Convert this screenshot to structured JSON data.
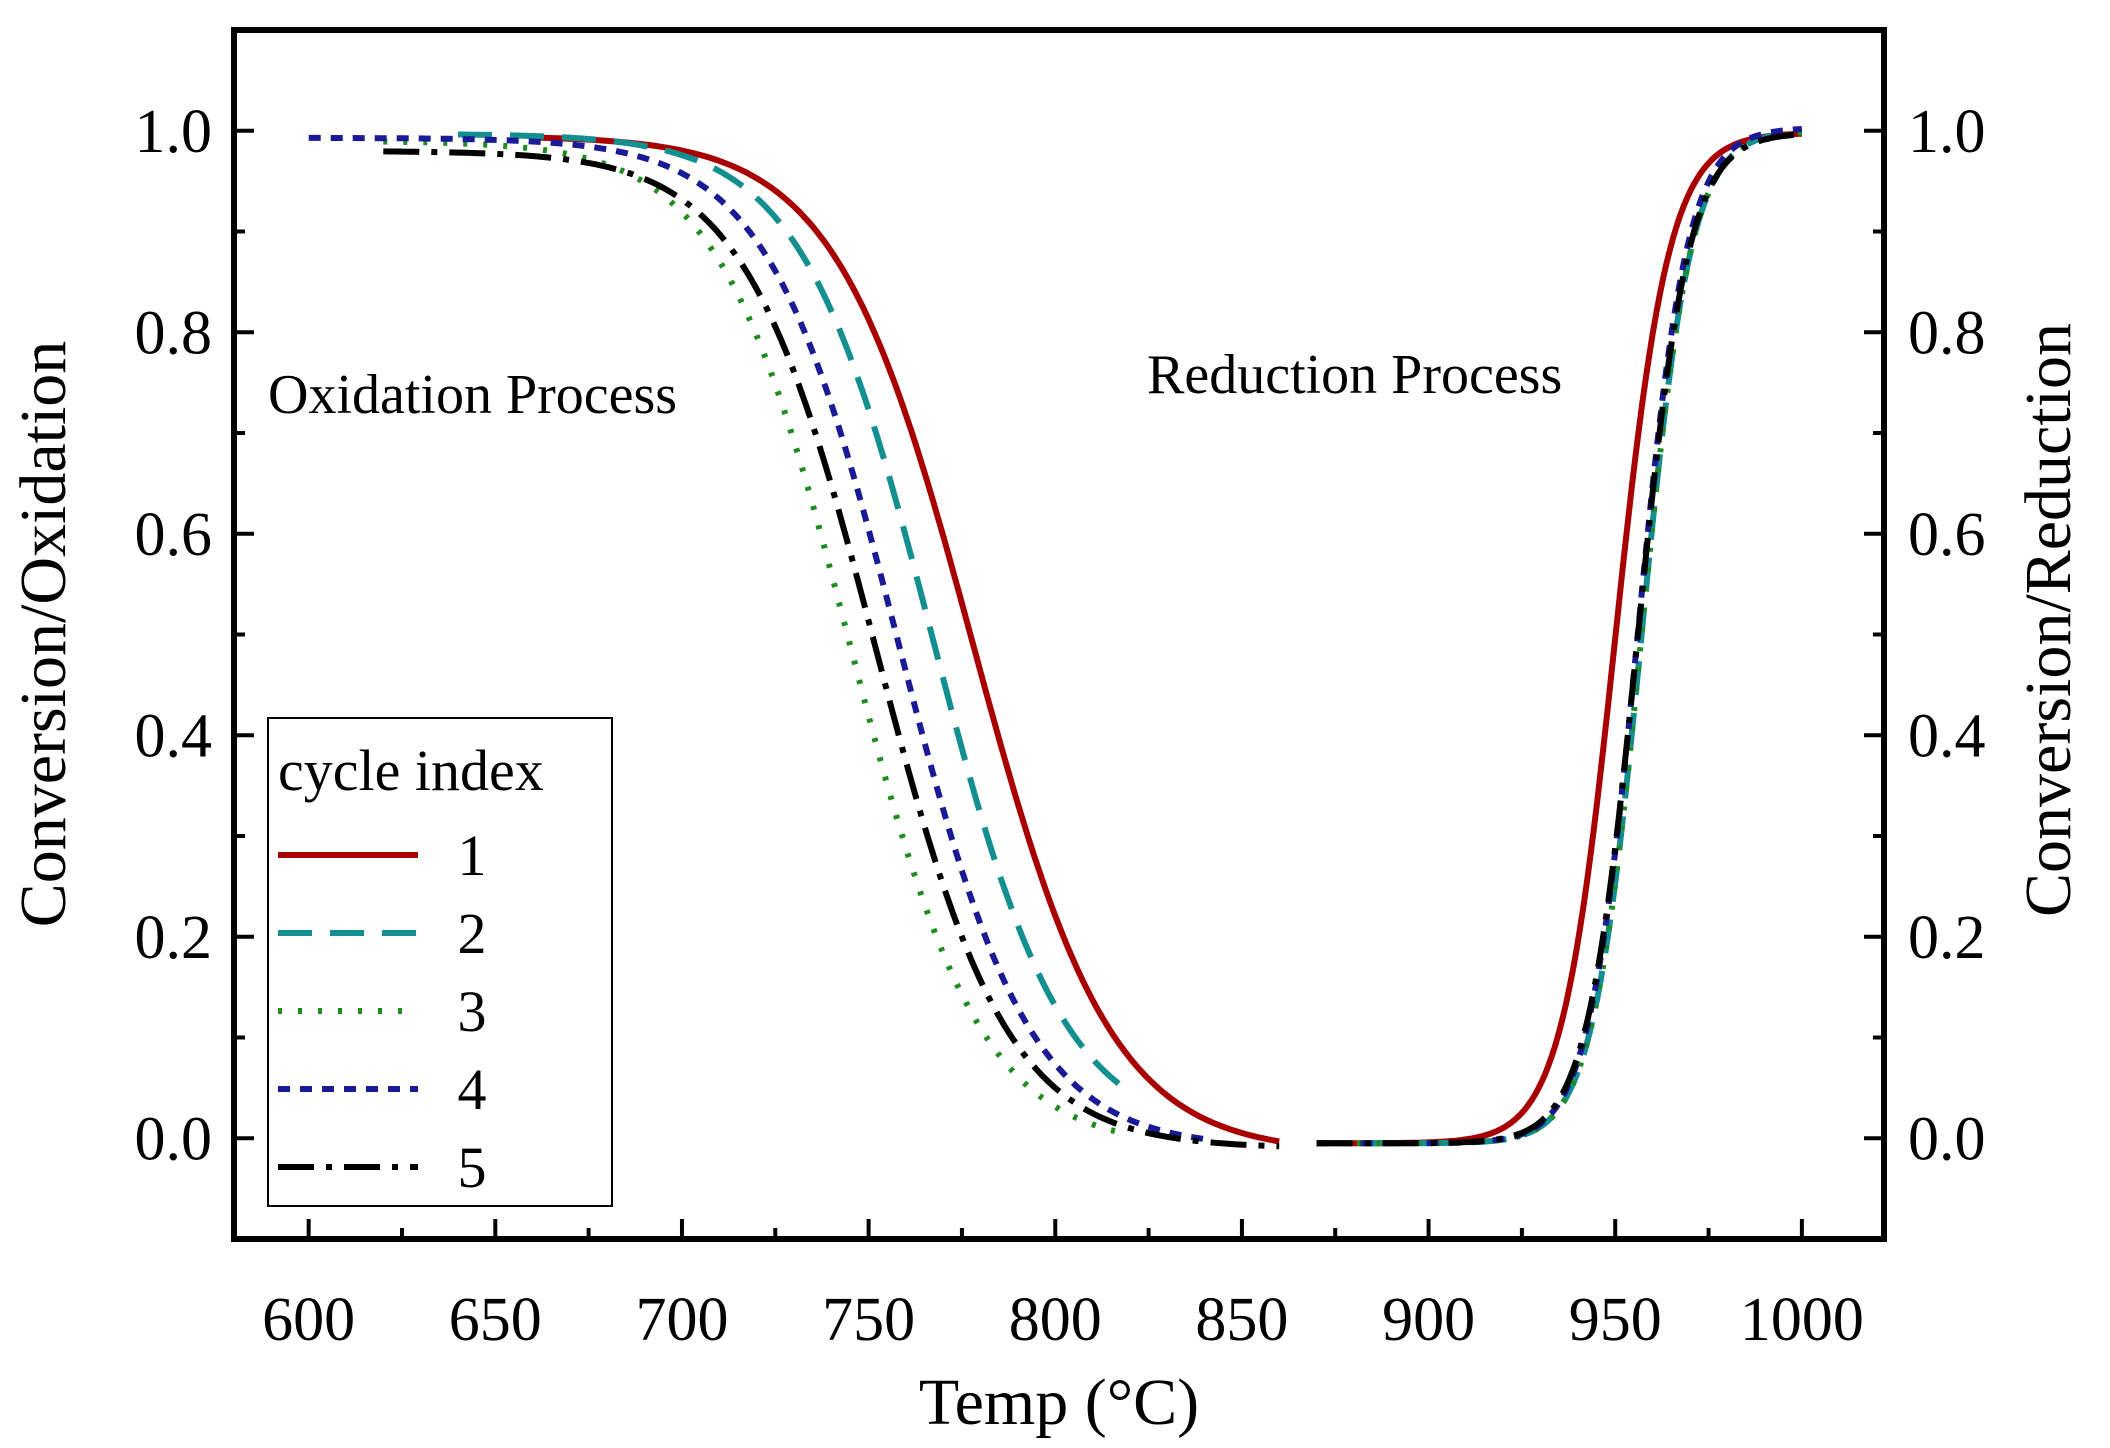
{
  "chart_data": {
    "type": "line",
    "xlabel": "Temp (°C)",
    "ylabel_left": "Conversion/Oxidation",
    "ylabel_right": "Conversion/Reduction",
    "xlim": [
      580,
      1022
    ],
    "ylim": [
      -0.1,
      1.1
    ],
    "x_ticks": [
      600,
      650,
      700,
      750,
      800,
      850,
      900,
      950,
      1000
    ],
    "x_tick_labels": [
      "600",
      "650",
      "700",
      "750",
      "800",
      "850",
      "900",
      "950",
      "1000"
    ],
    "y_ticks": [
      0.0,
      0.2,
      0.4,
      0.6,
      0.8,
      1.0
    ],
    "y_tick_labels": [
      "0.0",
      "0.2",
      "0.4",
      "0.6",
      "0.8",
      "1.0"
    ],
    "y_right_tick_labels": [
      "0.0",
      "0.2",
      "0.4",
      "0.6",
      "0.8",
      "1.0"
    ],
    "grid": false,
    "annotations": [
      {
        "text": "Oxidation Process",
        "x": 663,
        "y": 0.735
      },
      {
        "text": "Reduction Process",
        "x": 900,
        "y": 0.75
      }
    ],
    "legend": {
      "title": "cycle index",
      "position": "bottom-left"
    },
    "series": [
      {
        "name": "1",
        "color": "#A80000",
        "dash": "solid",
        "width": 6,
        "oxidation": {
          "x0": 660,
          "x1": 860,
          "start": 0.995,
          "end": -0.015,
          "t50": 778,
          "k": 18.5
        },
        "reduction": {
          "x0": 870,
          "x1": 1000,
          "start": -0.005,
          "end": 0.998,
          "t50": 950,
          "k": 7.2
        }
      },
      {
        "name": "2",
        "color": "#138F8F",
        "dash": "34 18",
        "width": 6,
        "oxidation": {
          "x0": 640,
          "x1": 817,
          "start": 0.997,
          "end": 0.0,
          "t50": 767,
          "k": 17.5
        },
        "reduction": {
          "x0": 870,
          "x1": 1000,
          "start": -0.005,
          "end": 1.0,
          "t50": 957,
          "k": 6.6
        }
      },
      {
        "name": "3",
        "color": "#1E8C1E",
        "dash": "4 16",
        "width": 6,
        "oxidation": {
          "x0": 620,
          "x1": 817,
          "start": 0.99,
          "end": -0.01,
          "t50": 745,
          "k": 17.5
        },
        "reduction": {
          "x0": 870,
          "x1": 1000,
          "start": -0.005,
          "end": 1.0,
          "t50": 957,
          "k": 6.6
        }
      },
      {
        "name": "4",
        "color": "#1A1A96",
        "dash": "12 10",
        "width": 6,
        "oxidation": {
          "x0": 600,
          "x1": 840,
          "start": 0.993,
          "end": -0.01,
          "t50": 758,
          "k": 17.5
        },
        "reduction": {
          "x0": 870,
          "x1": 1000,
          "start": -0.005,
          "end": 1.003,
          "t50": 956,
          "k": 6.6
        }
      },
      {
        "name": "5",
        "color": "#000000",
        "dash": "36 12 6 12",
        "width": 6,
        "oxidation": {
          "x0": 620,
          "x1": 860,
          "start": 0.98,
          "end": -0.01,
          "t50": 752,
          "k": 17.5
        },
        "reduction": {
          "x0": 870,
          "x1": 1000,
          "start": -0.005,
          "end": 0.998,
          "t50": 956,
          "k": 6.8
        }
      }
    ]
  }
}
